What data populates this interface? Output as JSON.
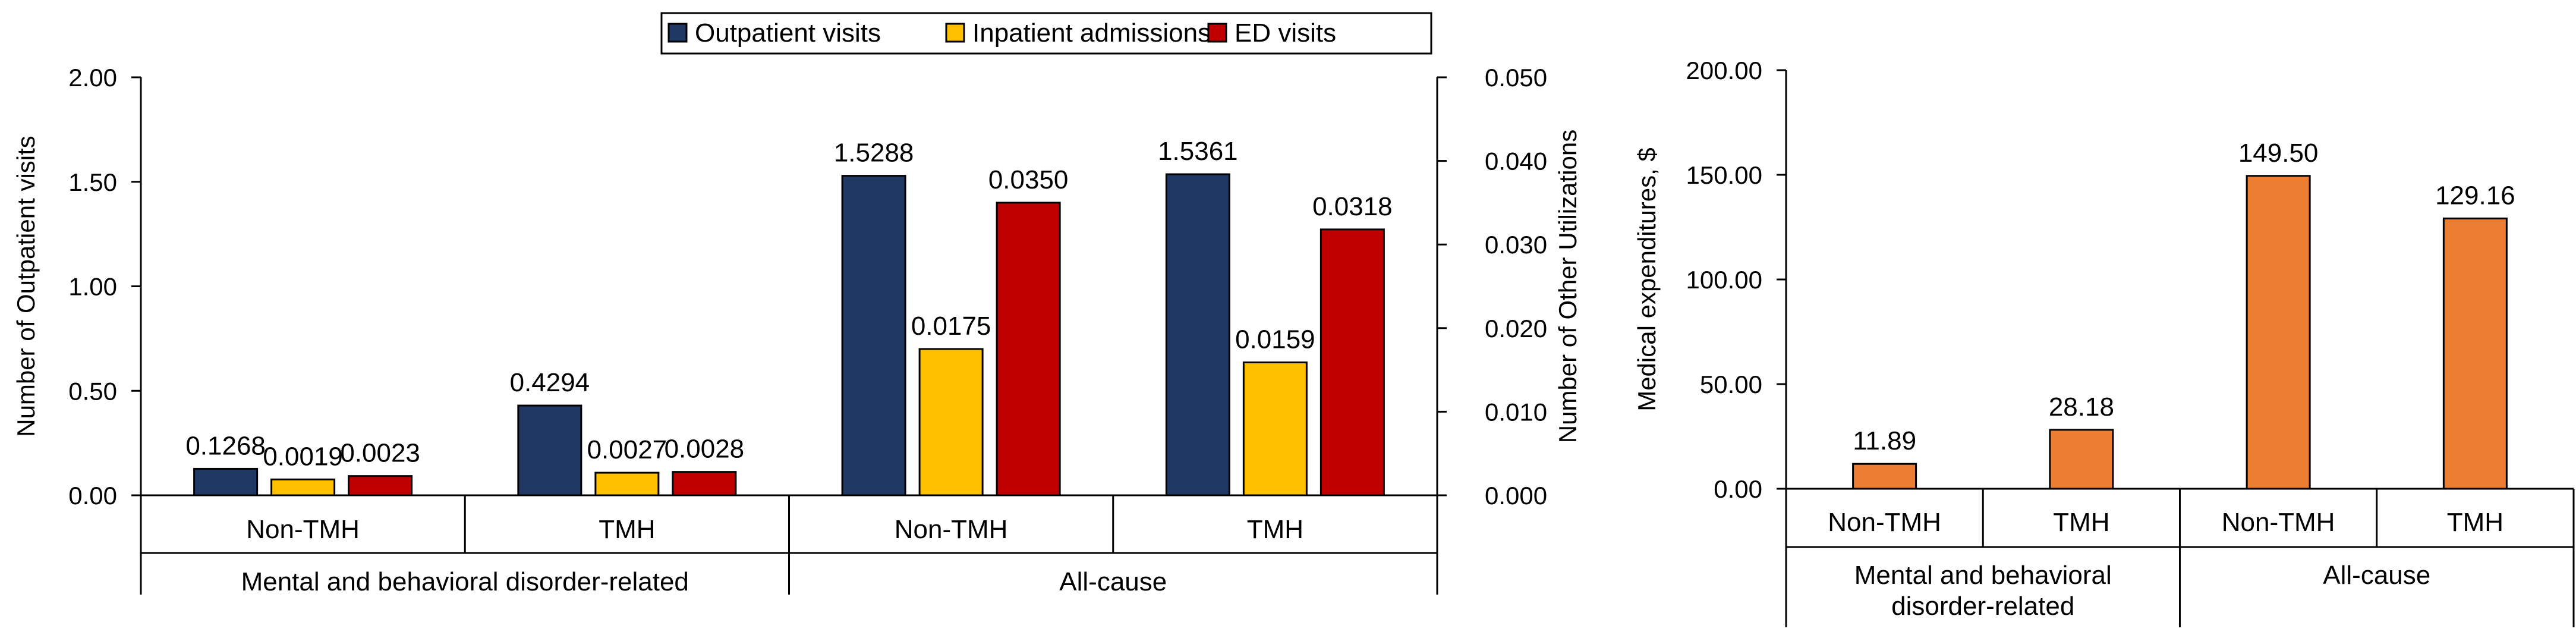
{
  "colors": {
    "outpatient": "#1F3864",
    "inpatient": "#FFC000",
    "ed": "#C00000",
    "expenditure": "#ED7D31"
  },
  "chart_data": [
    {
      "type": "bar",
      "legend": {
        "placement": "top",
        "entries": [
          "Outpatient visits",
          "Inpatient admissions",
          "ED visits"
        ]
      },
      "groups": [
        {
          "label": "Mental and behavioral disorder-related",
          "subcategories": [
            "Non-TMH",
            "TMH"
          ]
        },
        {
          "label": "All-cause",
          "subcategories": [
            "Non-TMH",
            "TMH"
          ]
        }
      ],
      "categories": [
        "Non-TMH",
        "TMH",
        "Non-TMH",
        "TMH"
      ],
      "series": [
        {
          "name": "Outpatient visits",
          "axis": "left",
          "values": [
            0.1268,
            0.4294,
            1.5288,
            1.5361
          ],
          "labels": [
            "0.1268",
            "0.4294",
            "1.5288",
            "1.5361"
          ]
        },
        {
          "name": "Inpatient admissions",
          "axis": "right",
          "values": [
            0.0019,
            0.0027,
            0.0175,
            0.0159
          ],
          "labels": [
            "0.0019",
            "0.0027",
            "0.0175",
            "0.0159"
          ]
        },
        {
          "name": "ED visits",
          "axis": "right",
          "values": [
            0.0023,
            0.0028,
            0.035,
            0.0318
          ],
          "labels": [
            "0.0023",
            "0.0028",
            "0.0350",
            "0.0318"
          ]
        }
      ],
      "ylabel": "Number of Outpatient visits",
      "ylim": [
        0,
        2
      ],
      "yticks": [
        "0.00",
        "0.50",
        "1.00",
        "1.50",
        "2.00"
      ],
      "y2label": "Number of Other Utilizations",
      "y2lim": [
        0,
        0.05
      ],
      "y2ticks": [
        "0.000",
        "0.010",
        "0.020",
        "0.030",
        "0.040",
        "0.050"
      ],
      "grid": false
    },
    {
      "type": "bar",
      "groups": [
        {
          "label": "Mental and behavioral disorder-related",
          "subcategories": [
            "Non-TMH",
            "TMH"
          ]
        },
        {
          "label": "All-cause",
          "subcategories": [
            "Non-TMH",
            "TMH"
          ]
        }
      ],
      "categories": [
        "Non-TMH",
        "TMH",
        "Non-TMH",
        "TMH"
      ],
      "series": [
        {
          "name": "Medical expenditures",
          "values": [
            11.89,
            28.18,
            149.5,
            129.16
          ],
          "labels": [
            "11.89",
            "28.18",
            "149.50",
            "129.16"
          ]
        }
      ],
      "ylabel": "Medical expenditures, $",
      "ylim": [
        0,
        200
      ],
      "yticks": [
        "0.00",
        "50.00",
        "100.00",
        "150.00",
        "200.00"
      ],
      "grid": false
    }
  ]
}
